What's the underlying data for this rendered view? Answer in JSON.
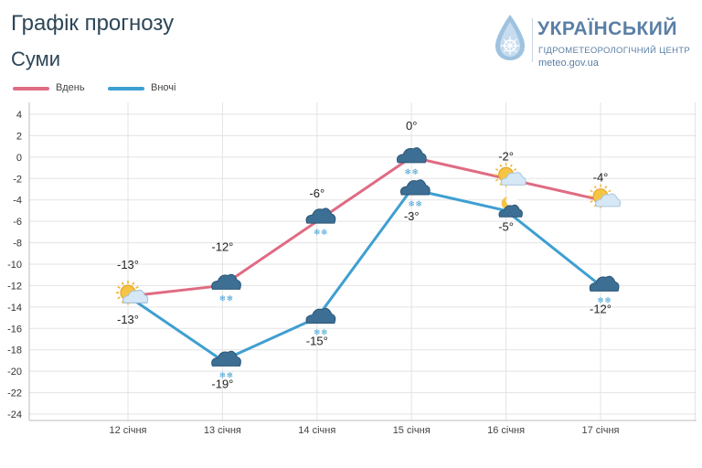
{
  "title": "Графік прогнозу",
  "subtitle": "Суми",
  "logo": {
    "name": "УКРАЇНСЬКИЙ",
    "subname": "ГІДРОМЕТЕОРОЛОГІЧНИЙ ЦЕНТР",
    "url": "meteo.gov.ua"
  },
  "colors": {
    "day": "#e06b83",
    "night": "#3f9fd1",
    "grid": "#e3e3e3",
    "text": "#222222"
  },
  "chart_data": {
    "type": "line",
    "categories": [
      "12 січня",
      "13 січня",
      "14 січня",
      "15 січня",
      "16 січня",
      "17 січня"
    ],
    "ylim": [
      -24,
      4
    ],
    "yticks": [
      4,
      2,
      0,
      -2,
      -4,
      -6,
      -8,
      -10,
      -12,
      -14,
      -16,
      -18,
      -20,
      -22,
      -24
    ],
    "grid": true,
    "legend_position": "top-left",
    "series": [
      {
        "name": "Вдень",
        "values": [
          -13,
          -12,
          -6,
          0,
          -2,
          -4
        ],
        "labels": [
          "-13°",
          "-12°",
          "-6°",
          "0°",
          "-2°",
          "-4°"
        ],
        "icons": [
          "partly-cloudy-snow-icon",
          "cloud-snow-icon",
          "cloud-snow-icon",
          "cloud-snow-icon",
          "partly-cloudy-icon",
          "partly-cloudy-icon"
        ]
      },
      {
        "name": "Вночі",
        "values": [
          -13,
          -19,
          -15,
          -3,
          -5,
          -12
        ],
        "labels": [
          "-13°",
          "-19°",
          "-15°",
          "-3°",
          "-5°",
          "-12°"
        ],
        "icons": [
          "partly-cloudy-icon",
          "cloud-snow-icon",
          "cloud-snow-icon",
          "cloud-snow-icon",
          "night-cloudy-icon",
          "cloud-snow-icon"
        ]
      }
    ]
  }
}
